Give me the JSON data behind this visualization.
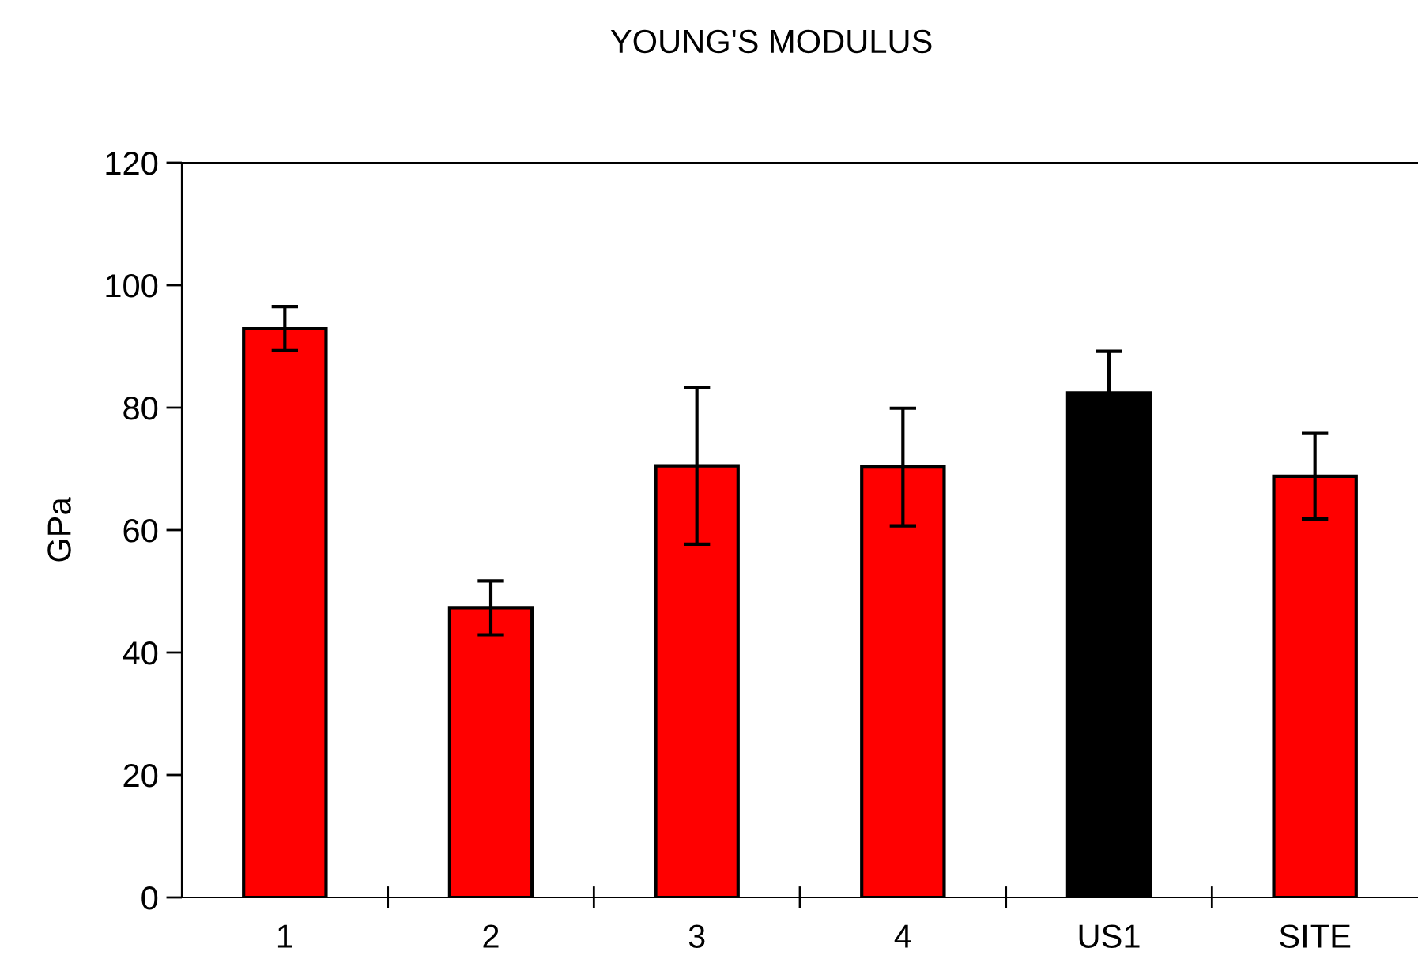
{
  "chart_data": {
    "type": "bar",
    "title": "YOUNG'S MODULUS",
    "ylabel": "GPa",
    "categories": [
      "1",
      "2",
      "3",
      "4",
      "US1",
      "SITE"
    ],
    "values": [
      92.9,
      47.3,
      70.5,
      70.3,
      82.4,
      68.8
    ],
    "colors": [
      "#ff0000",
      "#ff0000",
      "#ff0000",
      "#ff0000",
      "#000000",
      "#ff0000"
    ],
    "errors": [
      3.6,
      4.4,
      12.8,
      9.6,
      6.8,
      7.0
    ],
    "ylim": [
      0,
      120
    ],
    "yticks": [
      0,
      20,
      40,
      60,
      80,
      100,
      120
    ],
    "grid": false,
    "legend": false
  }
}
